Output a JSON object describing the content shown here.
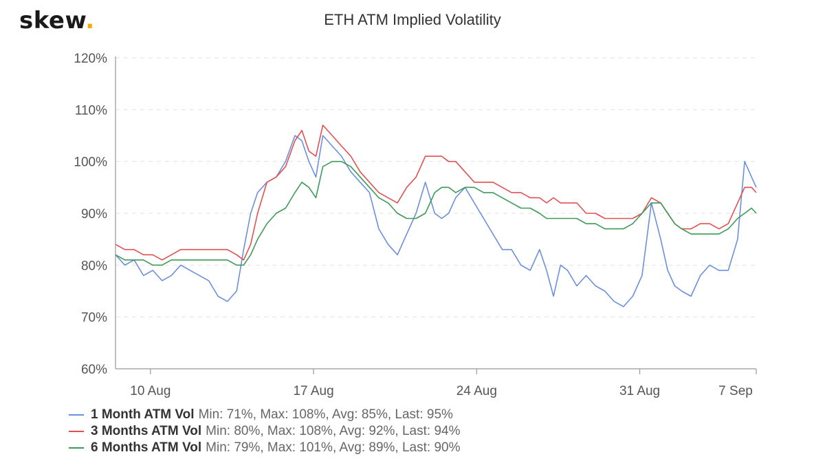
{
  "logo": {
    "text": "skew",
    "dot": "."
  },
  "chart_data": {
    "type": "line",
    "title": "ETH ATM Implied Volatility",
    "xlabel": "",
    "ylabel": "",
    "x_range": [
      8.5,
      36.0
    ],
    "ylim": [
      60,
      120
    ],
    "y_ticks": [
      {
        "value": 60,
        "label": "60%"
      },
      {
        "value": 70,
        "label": "70%"
      },
      {
        "value": 80,
        "label": "80%"
      },
      {
        "value": 90,
        "label": "90%"
      },
      {
        "value": 100,
        "label": "100%"
      },
      {
        "value": 110,
        "label": "110%"
      },
      {
        "value": 120,
        "label": "120%"
      }
    ],
    "x_ticks": [
      {
        "value": 10,
        "label": "10 Aug"
      },
      {
        "value": 17,
        "label": "17 Aug"
      },
      {
        "value": 24,
        "label": "24 Aug"
      },
      {
        "value": 31,
        "label": "31 Aug"
      },
      {
        "value": 38,
        "label": "7 Sep"
      }
    ],
    "grid": "horizontal-dashed",
    "legend_position": "bottom-left",
    "series": [
      {
        "name": "1 Month ATM Vol",
        "stats": "Min: 71%, Max: 108%, Avg: 85%, Last: 95%",
        "color": "#6a8fdc",
        "x": [
          8.5,
          8.9,
          9.3,
          9.7,
          10.1,
          10.5,
          10.9,
          11.3,
          11.7,
          12.1,
          12.5,
          12.9,
          13.3,
          13.7,
          14.0,
          14.3,
          14.6,
          15.0,
          15.4,
          15.8,
          16.2,
          16.5,
          16.8,
          17.1,
          17.4,
          17.8,
          18.2,
          18.6,
          19.0,
          19.4,
          19.8,
          20.2,
          20.6,
          21.0,
          21.4,
          21.8,
          22.2,
          22.5,
          22.8,
          23.1,
          23.5,
          23.9,
          24.3,
          24.7,
          25.1,
          25.5,
          25.9,
          26.3,
          26.7,
          27.0,
          27.3,
          27.6,
          27.9,
          28.3,
          28.7,
          29.1,
          29.5,
          29.9,
          30.3,
          30.7,
          31.1,
          31.5,
          31.9,
          32.2,
          32.5,
          32.8,
          33.2,
          33.6,
          34.0,
          34.4,
          34.8,
          35.2,
          35.5,
          35.8,
          36.0
        ],
        "y": [
          82,
          80,
          81,
          78,
          79,
          77,
          78,
          80,
          79,
          78,
          77,
          74,
          73,
          75,
          83,
          90,
          94,
          96,
          97,
          100,
          105,
          104,
          100,
          97,
          105,
          103,
          101,
          98,
          96,
          94,
          87,
          84,
          82,
          86,
          90,
          96,
          90,
          89,
          90,
          93,
          95,
          92,
          89,
          86,
          83,
          83,
          80,
          79,
          83,
          79,
          74,
          80,
          79,
          76,
          78,
          76,
          75,
          73,
          72,
          74,
          78,
          92,
          85,
          79,
          76,
          75,
          74,
          78,
          80,
          79,
          79,
          85,
          100,
          97,
          95
        ]
      },
      {
        "name": "3 Months ATM Vol",
        "stats": "Min: 80%, Max: 108%, Avg: 92%, Last: 94%",
        "color": "#e05050",
        "x": [
          8.5,
          8.9,
          9.3,
          9.7,
          10.1,
          10.5,
          10.9,
          11.3,
          11.7,
          12.1,
          12.5,
          12.9,
          13.3,
          13.7,
          14.0,
          14.3,
          14.6,
          15.0,
          15.4,
          15.8,
          16.2,
          16.5,
          16.8,
          17.1,
          17.4,
          17.8,
          18.2,
          18.6,
          19.0,
          19.4,
          19.8,
          20.2,
          20.6,
          21.0,
          21.4,
          21.8,
          22.2,
          22.5,
          22.8,
          23.1,
          23.5,
          23.9,
          24.3,
          24.7,
          25.1,
          25.5,
          25.9,
          26.3,
          26.7,
          27.0,
          27.3,
          27.6,
          27.9,
          28.3,
          28.7,
          29.1,
          29.5,
          29.9,
          30.3,
          30.7,
          31.1,
          31.5,
          31.9,
          32.2,
          32.5,
          32.8,
          33.2,
          33.6,
          34.0,
          34.4,
          34.8,
          35.2,
          35.5,
          35.8,
          36.0
        ],
        "y": [
          84,
          83,
          83,
          82,
          82,
          81,
          82,
          83,
          83,
          83,
          83,
          83,
          83,
          82,
          81,
          84,
          90,
          96,
          97,
          99,
          104,
          106,
          102,
          101,
          107,
          105,
          103,
          101,
          98,
          96,
          94,
          93,
          92,
          95,
          97,
          101,
          101,
          101,
          100,
          100,
          98,
          96,
          96,
          96,
          95,
          94,
          94,
          93,
          93,
          92,
          93,
          92,
          92,
          92,
          90,
          90,
          89,
          89,
          89,
          89,
          90,
          93,
          92,
          90,
          88,
          87,
          87,
          88,
          88,
          87,
          88,
          92,
          95,
          95,
          94
        ]
      },
      {
        "name": "6 Months ATM Vol",
        "stats": "Min: 79%, Max: 101%, Avg: 89%, Last: 90%",
        "color": "#3d9a56",
        "x": [
          8.5,
          8.9,
          9.3,
          9.7,
          10.1,
          10.5,
          10.9,
          11.3,
          11.7,
          12.1,
          12.5,
          12.9,
          13.3,
          13.7,
          14.0,
          14.3,
          14.6,
          15.0,
          15.4,
          15.8,
          16.2,
          16.5,
          16.8,
          17.1,
          17.4,
          17.8,
          18.2,
          18.6,
          19.0,
          19.4,
          19.8,
          20.2,
          20.6,
          21.0,
          21.4,
          21.8,
          22.2,
          22.5,
          22.8,
          23.1,
          23.5,
          23.9,
          24.3,
          24.7,
          25.1,
          25.5,
          25.9,
          26.3,
          26.7,
          27.0,
          27.3,
          27.6,
          27.9,
          28.3,
          28.7,
          29.1,
          29.5,
          29.9,
          30.3,
          30.7,
          31.1,
          31.5,
          31.9,
          32.2,
          32.5,
          32.8,
          33.2,
          33.6,
          34.0,
          34.4,
          34.8,
          35.2,
          35.5,
          35.8,
          36.0
        ],
        "y": [
          82,
          81,
          81,
          81,
          80,
          80,
          81,
          81,
          81,
          81,
          81,
          81,
          81,
          80,
          80,
          82,
          85,
          88,
          90,
          91,
          94,
          96,
          95,
          93,
          99,
          100,
          100,
          99,
          97,
          95,
          93,
          92,
          90,
          89,
          89,
          90,
          94,
          95,
          95,
          94,
          95,
          95,
          94,
          94,
          93,
          92,
          91,
          91,
          90,
          89,
          89,
          89,
          89,
          89,
          88,
          88,
          87,
          87,
          87,
          88,
          90,
          92,
          92,
          90,
          88,
          87,
          86,
          86,
          86,
          86,
          87,
          89,
          90,
          91,
          90
        ]
      }
    ]
  }
}
